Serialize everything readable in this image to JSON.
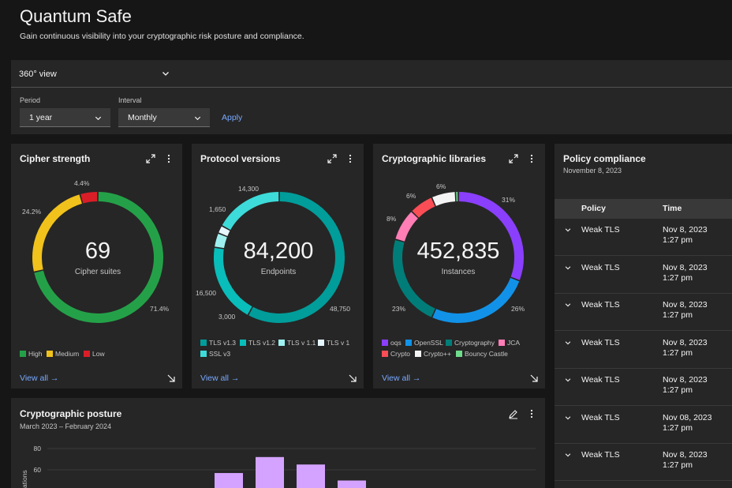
{
  "header": {
    "title": "Quantum Safe",
    "subtitle": "Gain continuous visibility into your cryptographic risk posture and compliance."
  },
  "filters": {
    "view": "360° view",
    "period_label": "Period",
    "period_value": "1 year",
    "interval_label": "Interval",
    "interval_value": "Monthly",
    "apply_label": "Apply"
  },
  "cipher": {
    "title": "Cipher strength",
    "total": "69",
    "unit": "Cipher suites",
    "view_all": "View all",
    "slices": [
      {
        "name": "High",
        "value": 71.4,
        "label": "71.4%",
        "color": "#24a148"
      },
      {
        "name": "Medium",
        "value": 24.2,
        "label": "24.2%",
        "color": "#f1c21b"
      },
      {
        "name": "Low",
        "value": 4.4,
        "label": "4.4%",
        "color": "#da1e28"
      }
    ]
  },
  "protocol": {
    "title": "Protocol versions",
    "total": "84,200",
    "unit": "Endpoints",
    "view_all": "View all",
    "slices": [
      {
        "name": "TLS v1.3",
        "value": 48750,
        "label": "48,750",
        "color": "#009d9a"
      },
      {
        "name": "TLS v1.2",
        "value": 16500,
        "label": "16,500",
        "color": "#08bdba"
      },
      {
        "name": "TLS v 1.1",
        "value": 3000,
        "label": "3,000",
        "color": "#9ef0f0"
      },
      {
        "name": "TLS v 1",
        "value": 1650,
        "label": "1,650",
        "color": "#e5f6ff"
      },
      {
        "name": "SSL v3",
        "value": 14300,
        "label": "14,300",
        "color": "#3ddbd9"
      }
    ]
  },
  "libraries": {
    "title": "Cryptographic libraries",
    "total": "452,835",
    "unit": "Instances",
    "view_all": "View all",
    "slices": [
      {
        "name": "oqs",
        "value": 31,
        "label": "31%",
        "color": "#8a3ffc"
      },
      {
        "name": "OpenSSL",
        "value": 26,
        "label": "26%",
        "color": "#1192e8"
      },
      {
        "name": "Cryptography",
        "value": 23,
        "label": "23%",
        "color": "#007d79"
      },
      {
        "name": "JCA",
        "value": 8,
        "label": "8%",
        "color": "#ff7eb6"
      },
      {
        "name": "Crypto",
        "value": 6,
        "label": "6%",
        "color": "#fa4d56"
      },
      {
        "name": "Crypto++",
        "value": 6,
        "label": "6%",
        "color": "#f4f4f4"
      },
      {
        "name": "Bouncy Castle",
        "value": 0.7,
        "label": "",
        "color": "#6fdc8c"
      }
    ]
  },
  "posture": {
    "title": "Cryptographic posture",
    "range": "March 2023 – February 2024"
  },
  "chart_data": {
    "type": "bar",
    "title": "Cryptographic posture",
    "subtitle": "March 2023 – February 2024",
    "ylabel": "ations",
    "yticks": [
      60,
      80
    ],
    "ylim": [
      48,
      86
    ],
    "series": [
      {
        "values": [
          null,
          null,
          null,
          null,
          57,
          72,
          65,
          50,
          null,
          null,
          null,
          null
        ],
        "color": "#d4a3ff"
      }
    ]
  },
  "policy": {
    "title": "Policy compliance",
    "date": "November 8, 2023",
    "col_policy": "Policy",
    "col_time": "Time",
    "rows": [
      {
        "policy": "Weak TLS",
        "date": "Nov 8, 2023",
        "time": "1:27 pm"
      },
      {
        "policy": "Weak TLS",
        "date": "Nov 8, 2023",
        "time": "1:27 pm"
      },
      {
        "policy": "Weak TLS",
        "date": "Nov 8, 2023",
        "time": "1:27 pm"
      },
      {
        "policy": "Weak TLS",
        "date": "Nov 8, 2023",
        "time": "1:27 pm"
      },
      {
        "policy": "Weak TLS",
        "date": "Nov 8, 2023",
        "time": "1:27 pm"
      },
      {
        "policy": "Weak TLS",
        "date": "Nov 08, 2023",
        "time": "1:27 pm"
      },
      {
        "policy": "Weak TLS",
        "date": "Nov 8, 2023",
        "time": "1:27 pm"
      }
    ]
  }
}
